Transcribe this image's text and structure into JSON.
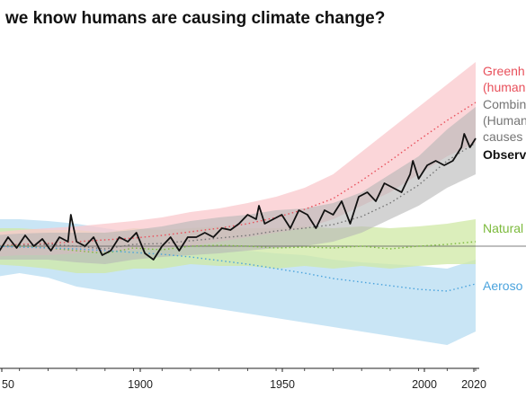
{
  "chart_data": {
    "type": "line",
    "title": "we know humans are causing climate change?",
    "x_ticks": [
      "50",
      "1900",
      "1950",
      "2000",
      "2020"
    ],
    "xlim": [
      1850,
      2020
    ],
    "colors": {
      "greenhouse": "#e8505b",
      "greenhouse_band": "#f9c8cc",
      "combined": "#757575",
      "combined_band": "#b6b6b6",
      "observed": "#111111",
      "natural": "#7cba3c",
      "natural_band": "#cfe8a4",
      "aerosols": "#4aa3dd",
      "aerosols_band": "#b7dcf2",
      "baseline": "#555555"
    },
    "legend": [
      {
        "key": "greenhouse",
        "lines": [
          "Greenh",
          "(human"
        ]
      },
      {
        "key": "combined",
        "lines": [
          "Combin",
          "(Human",
          " causes"
        ]
      },
      {
        "key": "observed",
        "lines": [
          "Observ"
        ]
      },
      {
        "key": "natural",
        "lines": [
          "Natural"
        ]
      },
      {
        "key": "aerosols",
        "lines": [
          "Aeroso"
        ]
      }
    ],
    "series": [
      {
        "key": "greenhouse",
        "style": "dotted",
        "x": [
          1850,
          1860,
          1870,
          1880,
          1890,
          1900,
          1910,
          1920,
          1930,
          1940,
          1950,
          1960,
          1970,
          1980,
          1990,
          2000,
          2010,
          2020
        ],
        "y": [
          0.0,
          0.02,
          0.03,
          0.05,
          0.07,
          0.09,
          0.12,
          0.16,
          0.2,
          0.25,
          0.32,
          0.41,
          0.53,
          0.73,
          0.95,
          1.18,
          1.4,
          1.6
        ]
      },
      {
        "key": "combined",
        "style": "dotted",
        "x": [
          1850,
          1860,
          1870,
          1880,
          1890,
          1900,
          1910,
          1920,
          1930,
          1940,
          1950,
          1960,
          1970,
          1980,
          1990,
          2000,
          2010,
          2020
        ],
        "y": [
          0.0,
          0.01,
          0.02,
          0.0,
          -0.03,
          0.02,
          0.03,
          0.06,
          0.09,
          0.12,
          0.17,
          0.2,
          0.24,
          0.33,
          0.48,
          0.68,
          0.95,
          1.15
        ]
      },
      {
        "key": "natural",
        "style": "dotted",
        "x": [
          1850,
          1860,
          1870,
          1880,
          1890,
          1900,
          1910,
          1920,
          1930,
          1940,
          1950,
          1960,
          1970,
          1980,
          1990,
          2000,
          2010,
          2020
        ],
        "y": [
          0.0,
          0.0,
          -0.02,
          -0.05,
          -0.08,
          -0.02,
          -0.04,
          0.0,
          0.01,
          0.0,
          -0.02,
          -0.01,
          -0.02,
          0.0,
          -0.03,
          0.0,
          0.02,
          0.05
        ]
      },
      {
        "key": "aerosols",
        "style": "dotted",
        "x": [
          1850,
          1860,
          1870,
          1880,
          1890,
          1900,
          1910,
          1920,
          1930,
          1940,
          1950,
          1960,
          1970,
          1980,
          1990,
          2000,
          2010,
          2020
        ],
        "y": [
          0.0,
          -0.01,
          -0.02,
          -0.03,
          -0.05,
          -0.07,
          -0.09,
          -0.12,
          -0.16,
          -0.2,
          -0.25,
          -0.3,
          -0.36,
          -0.4,
          -0.44,
          -0.48,
          -0.5,
          -0.42
        ]
      },
      {
        "key": "observed",
        "style": "solid",
        "x": [
          1850,
          1853,
          1856,
          1859,
          1862,
          1865,
          1868,
          1871,
          1874,
          1877,
          1878,
          1880,
          1883,
          1886,
          1889,
          1892,
          1895,
          1898,
          1901,
          1904,
          1907,
          1910,
          1913,
          1916,
          1919,
          1922,
          1925,
          1928,
          1931,
          1934,
          1937,
          1940,
          1943,
          1944,
          1946,
          1949,
          1952,
          1955,
          1958,
          1961,
          1964,
          1967,
          1970,
          1973,
          1976,
          1979,
          1982,
          1985,
          1988,
          1991,
          1994,
          1997,
          1998,
          2000,
          2003,
          2006,
          2009,
          2012,
          2015,
          2016,
          2018,
          2020
        ],
        "y": [
          0.05,
          -0.05,
          0.1,
          -0.02,
          0.12,
          0.0,
          0.08,
          -0.05,
          0.1,
          0.05,
          0.35,
          0.05,
          0.0,
          0.1,
          -0.1,
          -0.05,
          0.1,
          0.05,
          0.15,
          -0.08,
          -0.15,
          0.0,
          0.1,
          -0.05,
          0.1,
          0.1,
          0.15,
          0.1,
          0.2,
          0.18,
          0.25,
          0.35,
          0.3,
          0.45,
          0.25,
          0.3,
          0.35,
          0.2,
          0.4,
          0.35,
          0.2,
          0.4,
          0.35,
          0.5,
          0.25,
          0.55,
          0.6,
          0.5,
          0.7,
          0.65,
          0.6,
          0.8,
          0.95,
          0.75,
          0.9,
          0.95,
          0.9,
          0.95,
          1.1,
          1.25,
          1.1,
          1.2
        ]
      }
    ],
    "bands": [
      {
        "key": "aerosols",
        "x": [
          1850,
          1860,
          1870,
          1880,
          1890,
          1900,
          1910,
          1920,
          1930,
          1940,
          1950,
          1960,
          1970,
          1980,
          1990,
          2000,
          2010,
          2020
        ],
        "lo": [
          -0.35,
          -0.3,
          -0.35,
          -0.45,
          -0.5,
          -0.55,
          -0.6,
          -0.65,
          -0.7,
          -0.75,
          -0.8,
          -0.85,
          -0.9,
          -0.95,
          -1.0,
          -1.05,
          -1.1,
          -0.95
        ],
        "hi": [
          0.3,
          0.3,
          0.28,
          0.25,
          0.2,
          0.15,
          0.05,
          0.0,
          -0.02,
          -0.05,
          -0.08,
          -0.1,
          -0.15,
          -0.18,
          -0.2,
          -0.22,
          -0.25,
          -0.15
        ]
      },
      {
        "key": "natural",
        "x": [
          1850,
          1860,
          1870,
          1880,
          1890,
          1900,
          1910,
          1920,
          1930,
          1940,
          1950,
          1960,
          1970,
          1980,
          1990,
          2000,
          2010,
          2020
        ],
        "lo": [
          -0.2,
          -0.22,
          -0.25,
          -0.3,
          -0.3,
          -0.25,
          -0.25,
          -0.2,
          -0.22,
          -0.22,
          -0.25,
          -0.22,
          -0.25,
          -0.22,
          -0.25,
          -0.22,
          -0.2,
          -0.2
        ],
        "hi": [
          0.2,
          0.2,
          0.18,
          0.18,
          0.15,
          0.2,
          0.18,
          0.2,
          0.22,
          0.2,
          0.2,
          0.22,
          0.2,
          0.22,
          0.2,
          0.22,
          0.25,
          0.3
        ]
      },
      {
        "key": "greenhouse",
        "x": [
          1850,
          1860,
          1870,
          1880,
          1890,
          1900,
          1910,
          1920,
          1930,
          1940,
          1950,
          1960,
          1970,
          1980,
          1990,
          2000,
          2010,
          2020
        ],
        "lo": [
          -0.12,
          -0.1,
          -0.1,
          -0.08,
          -0.06,
          -0.04,
          -0.02,
          0.0,
          0.05,
          0.1,
          0.15,
          0.2,
          0.3,
          0.45,
          0.6,
          0.8,
          1.0,
          1.15
        ],
        "hi": [
          0.15,
          0.18,
          0.2,
          0.22,
          0.25,
          0.28,
          0.32,
          0.38,
          0.42,
          0.48,
          0.55,
          0.65,
          0.8,
          1.05,
          1.3,
          1.55,
          1.8,
          2.05
        ]
      },
      {
        "key": "combined",
        "x": [
          1850,
          1860,
          1870,
          1880,
          1890,
          1900,
          1910,
          1920,
          1930,
          1940,
          1950,
          1960,
          1970,
          1980,
          1990,
          2000,
          2010,
          2020
        ],
        "lo": [
          -0.15,
          -0.15,
          -0.15,
          -0.18,
          -0.2,
          -0.15,
          -0.12,
          -0.1,
          -0.08,
          -0.05,
          -0.02,
          0.0,
          0.05,
          0.15,
          0.3,
          0.45,
          0.65,
          0.8
        ],
        "hi": [
          0.12,
          0.14,
          0.15,
          0.15,
          0.15,
          0.18,
          0.22,
          0.28,
          0.32,
          0.35,
          0.4,
          0.42,
          0.48,
          0.6,
          0.8,
          1.0,
          1.3,
          1.55
        ]
      }
    ]
  }
}
